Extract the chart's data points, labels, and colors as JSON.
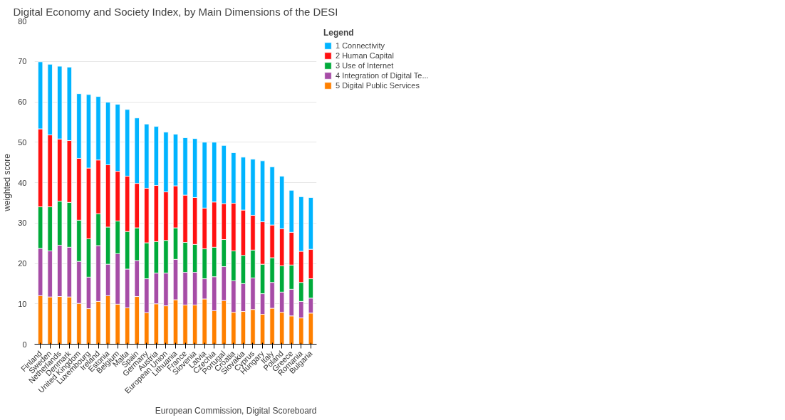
{
  "chart_data": {
    "type": "bar",
    "stacked": true,
    "title": "Digital Economy and Society Index, by Main Dimensions of the DESI",
    "ylabel": "weighted score",
    "legend_title": "Legend",
    "legend": "top right",
    "grid": "y",
    "ylim": [
      0,
      80
    ],
    "yticks": [
      0,
      10,
      20,
      30,
      40,
      50,
      60,
      70,
      80
    ],
    "categories": [
      "Finland",
      "Sweden",
      "Netherlands",
      "Denmark",
      "United Kingdom",
      "Luxembourg",
      "Ireland",
      "Estonia",
      "Belgium",
      "Malta",
      "Spain",
      "Germany",
      "Austria",
      "European Union",
      "Lithuania",
      "France",
      "Slovenia",
      "Latvia",
      "Czechia",
      "Portugal",
      "Croatia",
      "Slovakia",
      "Cyprus",
      "Hungary",
      "Italy",
      "Poland",
      "Greece",
      "Romania",
      "Bulgaria"
    ],
    "series": [
      {
        "name": "5 Digital Public Services",
        "color": "#ff8000",
        "values": [
          12,
          11.7,
          11.8,
          11.7,
          10.1,
          8.8,
          10.6,
          12,
          9.9,
          9,
          11.8,
          7.8,
          10,
          9.5,
          11,
          9.7,
          9.7,
          11.2,
          8.3,
          10.8,
          7.9,
          8.1,
          8.6,
          7.4,
          8.9,
          7.9,
          7,
          6.5,
          7.7
        ]
      },
      {
        "name": "4 Integration of Digital Te...",
        "color": "#a64ca6",
        "values": [
          11.7,
          11.4,
          12.7,
          12.3,
          10.4,
          7.8,
          13.8,
          7.8,
          12.5,
          9.6,
          8.9,
          8.4,
          7.6,
          8.1,
          10,
          8.1,
          8.1,
          5,
          8.4,
          8.4,
          7.8,
          6.9,
          7.8,
          5.1,
          6.4,
          5,
          6.6,
          4.1,
          3.7
        ]
      },
      {
        "name": "3 Use of Internet",
        "color": "#00aa3a",
        "values": [
          10.3,
          10.9,
          10.9,
          11.1,
          10.2,
          9.5,
          7.9,
          9.2,
          8.1,
          9.3,
          8.1,
          8.9,
          7.8,
          8.1,
          7.8,
          7.4,
          6.9,
          7.4,
          7.3,
          6.7,
          7.4,
          7,
          6.9,
          7.3,
          6.1,
          6.5,
          6,
          4.7,
          4.8
        ]
      },
      {
        "name": "2 Human Capital",
        "color": "#ff1111",
        "values": [
          19.3,
          17.8,
          15.4,
          15.3,
          15.3,
          17.5,
          13.3,
          15.4,
          12.3,
          13.7,
          11,
          13.5,
          13.9,
          12,
          10.4,
          11.7,
          11.6,
          10.1,
          11.2,
          8.9,
          11.8,
          11.2,
          8.6,
          10.5,
          8.1,
          9.2,
          8.1,
          7.7,
          7.3
        ]
      },
      {
        "name": "1 Connectivity",
        "color": "#00b4ff",
        "values": [
          16.6,
          17.5,
          18,
          18.2,
          16,
          18.2,
          15.7,
          15.5,
          16.6,
          16.5,
          16.2,
          15.9,
          14.6,
          14.8,
          12.8,
          14.2,
          14.6,
          16.3,
          14.8,
          14.4,
          12.5,
          13.1,
          13.9,
          15.1,
          14.4,
          13,
          10.4,
          13.5,
          12.8
        ]
      }
    ],
    "annotations": [
      "European Commission, Digital Scoreboard"
    ]
  }
}
